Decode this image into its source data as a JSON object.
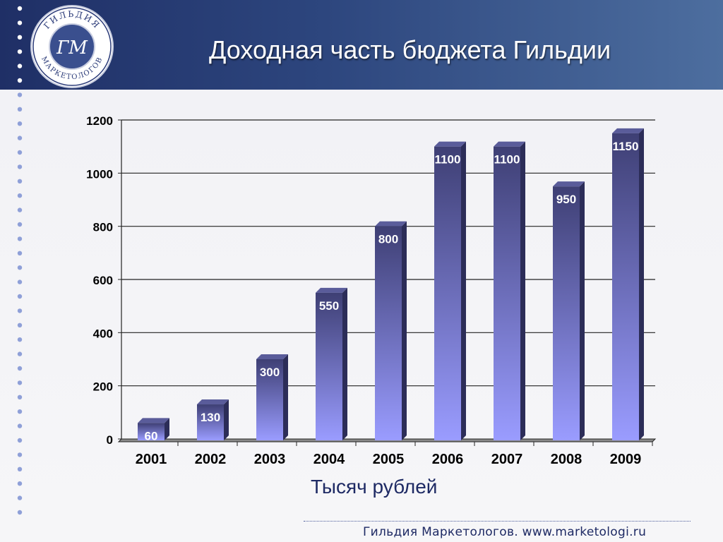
{
  "slide": {
    "title": "Доходная часть бюджета Гильдии",
    "footer": "Гильдия Маркетологов. www.marketologi.ru",
    "logo": {
      "ring_text_top": "ГИЛЬДИЯ",
      "ring_text_bottom": "МАРКЕТОЛОГОВ",
      "monogram": "ГМ"
    }
  },
  "chart_data": {
    "type": "bar",
    "title": "",
    "categories": [
      "2001",
      "2002",
      "2003",
      "2004",
      "2005",
      "2006",
      "2007",
      "2008",
      "2009"
    ],
    "values": [
      60,
      130,
      300,
      550,
      800,
      1100,
      1100,
      950,
      1150
    ],
    "data_labels": [
      "60",
      "130",
      "300",
      "550",
      "800",
      "1100",
      "1100",
      "950",
      "1150"
    ],
    "xlabel": "Тысяч рублей",
    "ylabel": "",
    "ylim": [
      0,
      1200
    ],
    "yticks": [
      0,
      200,
      400,
      600,
      800,
      1000,
      1200
    ],
    "grid": true,
    "legend": "none",
    "colors": {
      "bar_top": "#3e3f74",
      "bar_bottom": "#9a9cff",
      "bar_side": "#2c2d58",
      "bar_cap": "#5a5c9a",
      "floor": "#8a8a8a",
      "label_text": "#ffffff"
    }
  }
}
